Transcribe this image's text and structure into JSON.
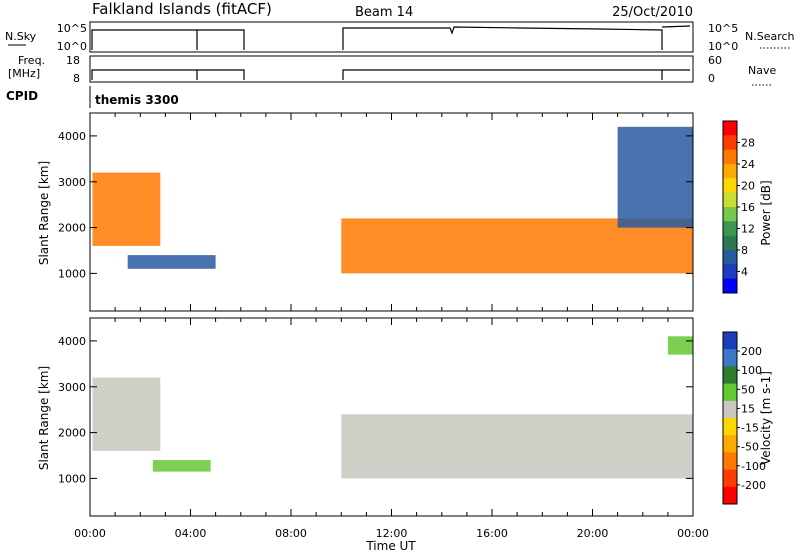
{
  "header": {
    "station": "Falkland Islands (fitACF)",
    "beam": "Beam 14",
    "date": "25/Oct/2010"
  },
  "strips": {
    "nsky_label": "N.Sky",
    "nsearch_label": "N.Search",
    "noise_ticks": [
      "10^5",
      "10^0"
    ],
    "freq_label_line1": "Freq.",
    "freq_label_line2": "[MHz]",
    "freq_ticks": [
      "18",
      "8"
    ],
    "nave_label": "Nave",
    "nave_ticks": [
      "60",
      "0"
    ],
    "cpid_label": "CPID",
    "cpid_value": "themis 3300"
  },
  "colorbars": {
    "power": {
      "label": "Power [dB]",
      "ticks": [
        "28",
        "24",
        "20",
        "16",
        "12",
        "8",
        "4"
      ],
      "colors": [
        "#ff0000",
        "#ff3c00",
        "#ff7800",
        "#ffaa00",
        "#ffd700",
        "#c8dc32",
        "#78c850",
        "#3c9650",
        "#2d7850",
        "#285aa0",
        "#1e3cbe",
        "#0000ff"
      ]
    },
    "velocity": {
      "label": "Velocity [m s-1]",
      "ticks": [
        "200",
        "100",
        "50",
        "15",
        "-15",
        "-50",
        "-100",
        "-200"
      ],
      "colors": [
        "#1e3cbe",
        "#3c78c8",
        "#2d7d2d",
        "#64c832",
        "#c8c8c0",
        "#ffd700",
        "#ffaa00",
        "#ff7800",
        "#ff3c00",
        "#ff0000"
      ]
    }
  },
  "chart_data": [
    {
      "type": "heatmap",
      "quantity": "Power",
      "title": "Falkland Islands (fitACF) Beam 14 25/Oct/2010",
      "xlabel": "Time UT",
      "ylabel": "Slant Range [km]",
      "xticks": [
        "00:00",
        "04:00",
        "08:00",
        "12:00",
        "16:00",
        "20:00",
        "00:00"
      ],
      "yticks": [
        1000,
        2000,
        3000,
        4000
      ],
      "xlim_hours": [
        0,
        24
      ],
      "ylim_km": [
        180,
        4500
      ],
      "colorbar_range_db": [
        0,
        30
      ],
      "data_gaps_hours": [
        [
          6.0,
          10.0
        ]
      ],
      "echo_regions": [
        {
          "t_start": 0.1,
          "t_end": 2.8,
          "range_start_km": 1600,
          "range_end_km": 3200,
          "power_db": 25
        },
        {
          "t_start": 1.5,
          "t_end": 5.0,
          "range_start_km": 1100,
          "range_end_km": 1400,
          "power_db": 5
        },
        {
          "t_start": 10.0,
          "t_end": 24.0,
          "range_start_km": 1000,
          "range_end_km": 2200,
          "power_db": 25
        },
        {
          "t_start": 21.0,
          "t_end": 24.0,
          "range_start_km": 2000,
          "range_end_km": 4200,
          "power_db": 6
        }
      ]
    },
    {
      "type": "heatmap",
      "quantity": "Velocity",
      "xlabel": "Time UT",
      "ylabel": "Slant Range [km]",
      "xticks": [
        "00:00",
        "04:00",
        "08:00",
        "12:00",
        "16:00",
        "20:00",
        "00:00"
      ],
      "yticks": [
        1000,
        2000,
        3000,
        4000
      ],
      "xlim_hours": [
        0,
        24
      ],
      "ylim_km": [
        180,
        4500
      ],
      "colorbar_range_ms": [
        -200,
        200
      ],
      "data_gaps_hours": [
        [
          6.0,
          10.0
        ]
      ],
      "echo_regions": [
        {
          "t_start": 0.1,
          "t_end": 2.8,
          "range_start_km": 1600,
          "range_end_km": 3200,
          "velocity_ms": 0
        },
        {
          "t_start": 2.5,
          "t_end": 4.8,
          "range_start_km": 1150,
          "range_end_km": 1400,
          "velocity_ms": 40
        },
        {
          "t_start": 10.0,
          "t_end": 24.0,
          "range_start_km": 1000,
          "range_end_km": 2400,
          "velocity_ms": 0
        },
        {
          "t_start": 23.0,
          "t_end": 24.0,
          "range_start_km": 3700,
          "range_end_km": 4100,
          "velocity_ms": 40
        }
      ]
    }
  ]
}
